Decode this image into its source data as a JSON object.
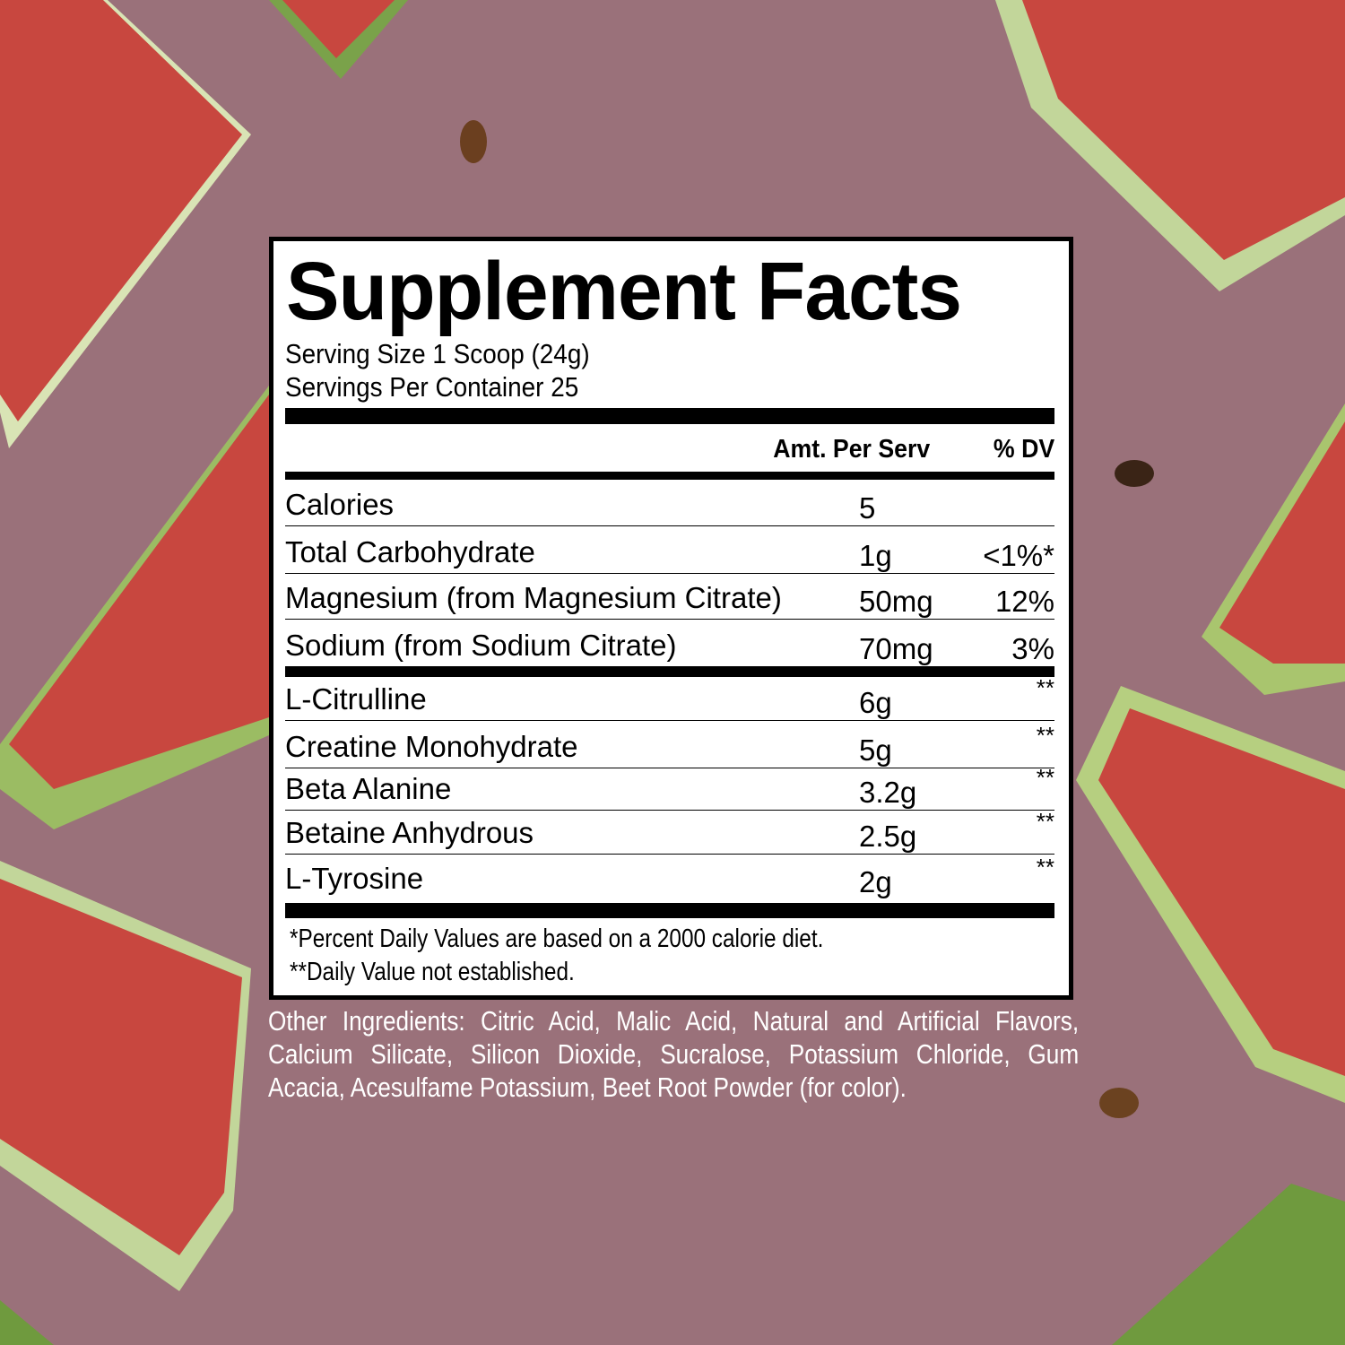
{
  "label": {
    "title": "Supplement Facts",
    "serving_size": "Serving Size 1 Scoop (24g)",
    "servings_per_container": "Servings Per Container 25",
    "header": {
      "amount": "Amt. Per Serv",
      "dv": "% DV"
    },
    "rows": [
      {
        "name": "Calories",
        "amount": "5",
        "dv": ""
      },
      {
        "name": "Total Carbohydrate",
        "amount": "1g",
        "dv": "<1%*"
      },
      {
        "name": "Magnesium (from Magnesium Citrate)",
        "amount": "50mg",
        "dv": "12%"
      },
      {
        "name": "Sodium (from Sodium Citrate)",
        "amount": "70mg",
        "dv": "3%"
      },
      {
        "name": "L-Citrulline",
        "amount": "6g",
        "dv": "**"
      },
      {
        "name": "Creatine Monohydrate",
        "amount": "5g",
        "dv": "**"
      },
      {
        "name": "Beta Alanine",
        "amount": "3.2g",
        "dv": "**"
      },
      {
        "name": "Betaine Anhydrous",
        "amount": "2.5g",
        "dv": "**"
      },
      {
        "name": "L-Tyrosine",
        "amount": "2g",
        "dv": "**"
      }
    ],
    "footnotes": [
      "*Percent Daily Values are based on a 2000 calorie diet.",
      "**Daily Value not established."
    ]
  },
  "other_ingredients": "Other Ingredients: Citric Acid, Malic Acid, Natural and Artificial Flavors, Calcium Silicate, Silicon Dioxide, Sucralose, Potassium Chloride, Gum Acacia, Acesulfame Potassium, Beet Root Powder (for color).",
  "colors": {
    "background": "#9a717a",
    "flesh": "#c8473f",
    "rind": "#8fb35a",
    "rind_light": "#d9e4b5"
  }
}
